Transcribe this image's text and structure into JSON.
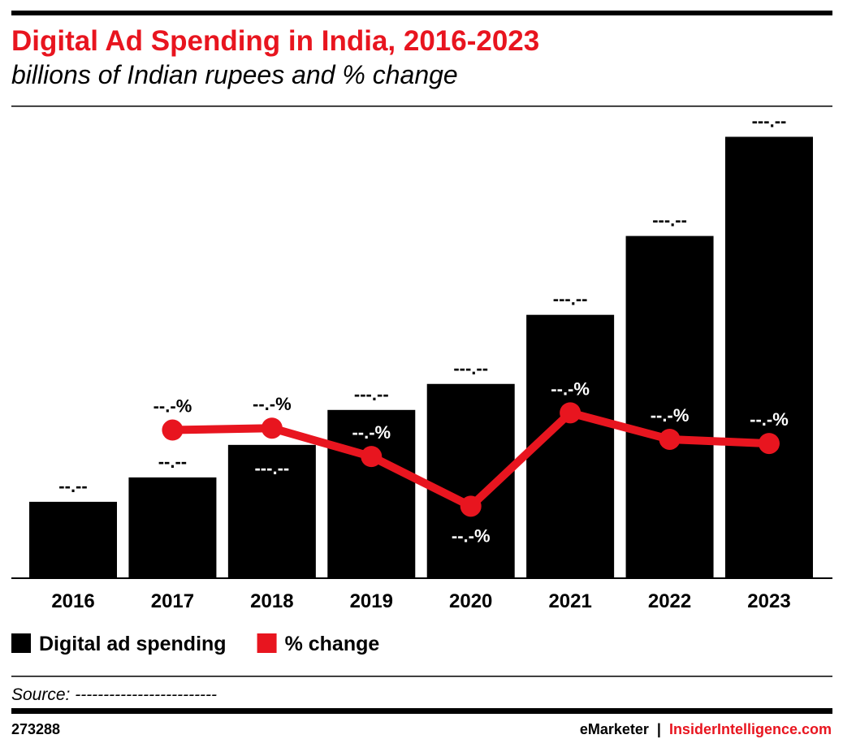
{
  "chart_data": {
    "type": "bar_line",
    "title": "Digital Ad Spending in India, 2016-2023",
    "subtitle": "billions of Indian rupees and % change",
    "categories": [
      "2016",
      "2017",
      "2018",
      "2019",
      "2020",
      "2021",
      "2022",
      "2023"
    ],
    "series": [
      {
        "name": "Digital ad spending",
        "type": "bar",
        "color": "#000000",
        "values": [
          65.8,
          86.8,
          114.8,
          144.9,
          167.3,
          226.8,
          294.7,
          380.1
        ],
        "value_labels": [
          "--.--",
          "--.--",
          "---.--",
          "---.--",
          "---.--",
          "---.--",
          "---.--",
          "---.--"
        ]
      },
      {
        "name": "% change",
        "type": "line",
        "axis": "y2",
        "color": "#e8151f",
        "values": [
          null,
          31.9,
          32.3,
          26.2,
          15.5,
          35.6,
          29.9,
          29.0
        ],
        "value_labels": [
          null,
          "--.-%",
          "--.-%",
          "--.-%",
          "--.-%",
          "--.-%",
          "--.-%",
          "--.-%"
        ]
      }
    ],
    "ylim": [
      0,
      400
    ],
    "y2lim": [
      0,
      100
    ],
    "source": "Source: -------------------------",
    "chart_id": "273288",
    "brand": "eMarketer",
    "separator": "|",
    "site": "InsiderIntelligence.com"
  }
}
